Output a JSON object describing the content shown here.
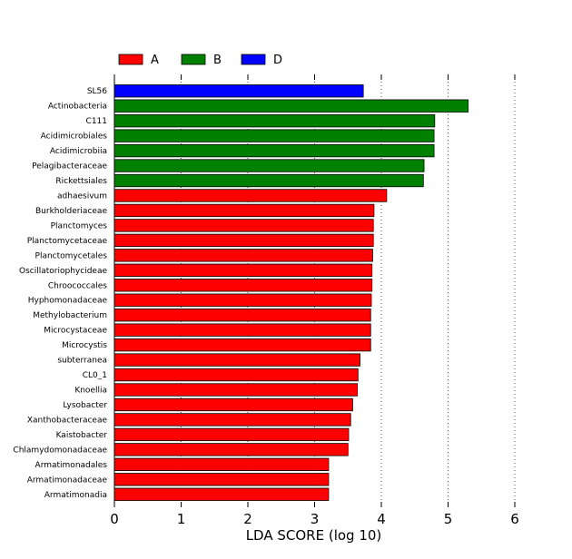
{
  "chart_data": {
    "type": "bar",
    "orientation": "horizontal",
    "xlabel": "LDA SCORE (log 10)",
    "xlim": [
      0,
      6
    ],
    "xticks": [
      0,
      1,
      2,
      3,
      4,
      5,
      6
    ],
    "grid": "vertical dotted",
    "legend_position": "top-left",
    "groups": [
      {
        "name": "A",
        "color": "#ff0000"
      },
      {
        "name": "B",
        "color": "#008000"
      },
      {
        "name": "D",
        "color": "#0000ff"
      }
    ],
    "categories": [
      "SL56",
      "Actinobacteria",
      "C111",
      "Acidimicrobiales",
      "Acidimicrobiia",
      "Pelagibacteraceae",
      "Rickettsiales",
      "adhaesivum",
      "Burkholderiaceae",
      "Planctomyces",
      "Planctomycetaceae",
      "Planctomycetales",
      "Oscillatoriophycideae",
      "Chroococcales",
      "Hyphomonadaceae",
      "Methylobacterium",
      "Microcystaceae",
      "Microcystis",
      "subterranea",
      "CL0_1",
      "Knoellia",
      "Lysobacter",
      "Xanthobacteraceae",
      "Kaistobacter",
      "Chlamydomonadaceae",
      "Armatimonadales",
      "Armatimonadaceae",
      "Armatimonadia"
    ],
    "values": [
      3.73,
      5.3,
      4.8,
      4.79,
      4.79,
      4.64,
      4.63,
      4.08,
      3.89,
      3.88,
      3.88,
      3.87,
      3.86,
      3.86,
      3.85,
      3.84,
      3.84,
      3.84,
      3.68,
      3.65,
      3.64,
      3.57,
      3.54,
      3.51,
      3.5,
      3.21,
      3.21,
      3.21
    ],
    "group_of": [
      "D",
      "B",
      "B",
      "B",
      "B",
      "B",
      "B",
      "A",
      "A",
      "A",
      "A",
      "A",
      "A",
      "A",
      "A",
      "A",
      "A",
      "A",
      "A",
      "A",
      "A",
      "A",
      "A",
      "A",
      "A",
      "A",
      "A",
      "A"
    ]
  }
}
